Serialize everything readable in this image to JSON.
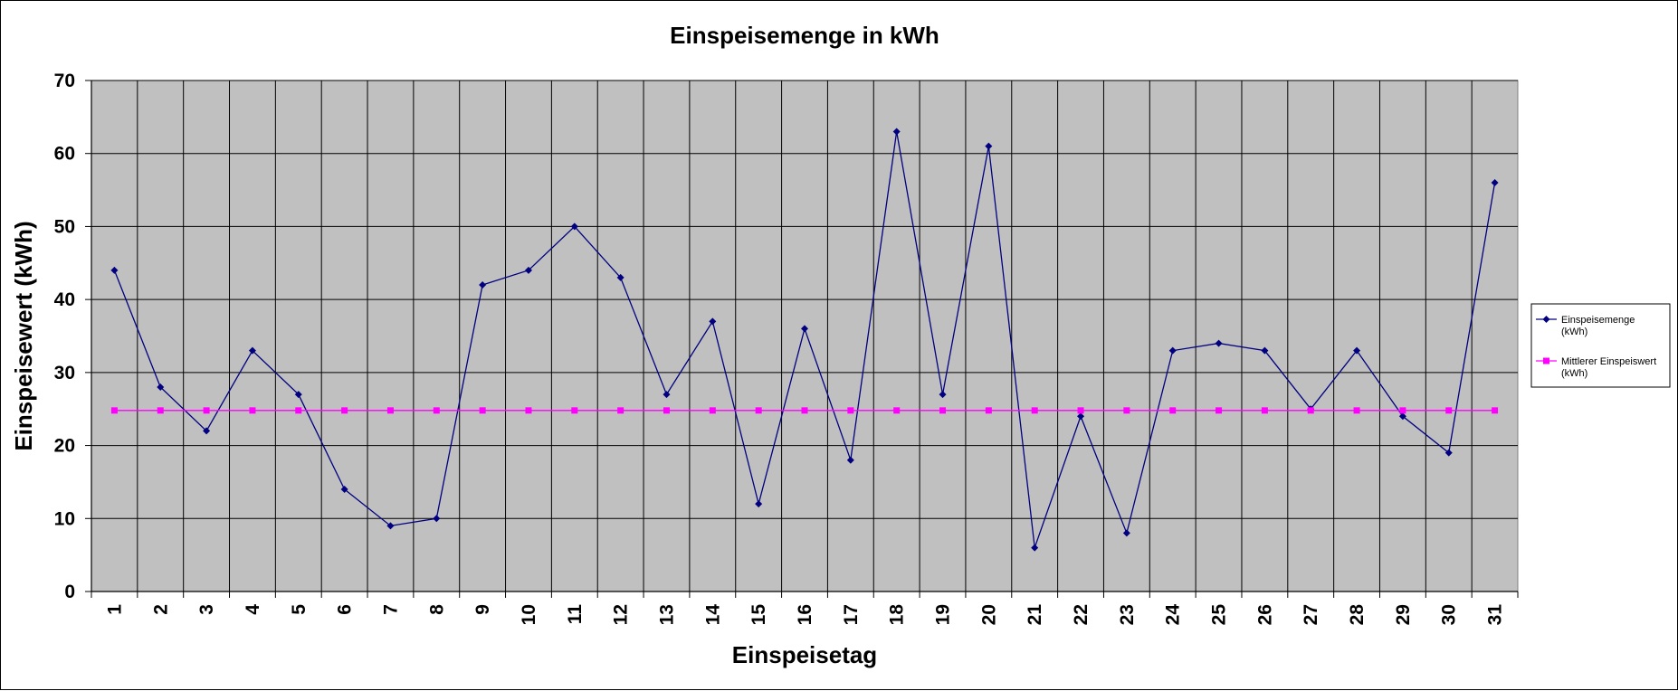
{
  "chart_data": {
    "type": "line",
    "title": "Einspeisemenge in kWh",
    "xlabel": "Einspeisetag",
    "ylabel": "Einspeisewert  (kWh)",
    "ylim": [
      0,
      70
    ],
    "yticks": [
      0,
      10,
      20,
      30,
      40,
      50,
      60,
      70
    ],
    "categories": [
      "1",
      "2",
      "3",
      "4",
      "5",
      "6",
      "7",
      "8",
      "9",
      "10",
      "11",
      "12",
      "13",
      "14",
      "15",
      "16",
      "17",
      "18",
      "19",
      "20",
      "21",
      "22",
      "23",
      "24",
      "25",
      "26",
      "27",
      "28",
      "29",
      "30",
      "31"
    ],
    "grid": true,
    "legend_position": "right",
    "plot_background": "#c0c0c0",
    "series": [
      {
        "name": "Einspeisemenge (kWh)",
        "legend_lines": [
          "Einspeisemenge",
          "(kWh)"
        ],
        "color": "#000080",
        "marker": "diamond",
        "values": [
          44,
          28,
          22,
          33,
          27,
          14,
          9,
          10,
          42,
          44,
          50,
          43,
          27,
          37,
          12,
          36,
          18,
          63,
          27,
          61,
          6,
          24,
          8,
          33,
          34,
          33,
          25,
          33,
          24,
          19,
          56
        ]
      },
      {
        "name": "Mittlerer Einspeiswert (kWh)",
        "legend_lines": [
          "Mittlerer Einspeiswert",
          "(kWh)"
        ],
        "color": "#ff00ff",
        "marker": "square",
        "values": [
          24.8,
          24.8,
          24.8,
          24.8,
          24.8,
          24.8,
          24.8,
          24.8,
          24.8,
          24.8,
          24.8,
          24.8,
          24.8,
          24.8,
          24.8,
          24.8,
          24.8,
          24.8,
          24.8,
          24.8,
          24.8,
          24.8,
          24.8,
          24.8,
          24.8,
          24.8,
          24.8,
          24.8,
          24.8,
          24.8,
          24.8
        ]
      }
    ]
  }
}
